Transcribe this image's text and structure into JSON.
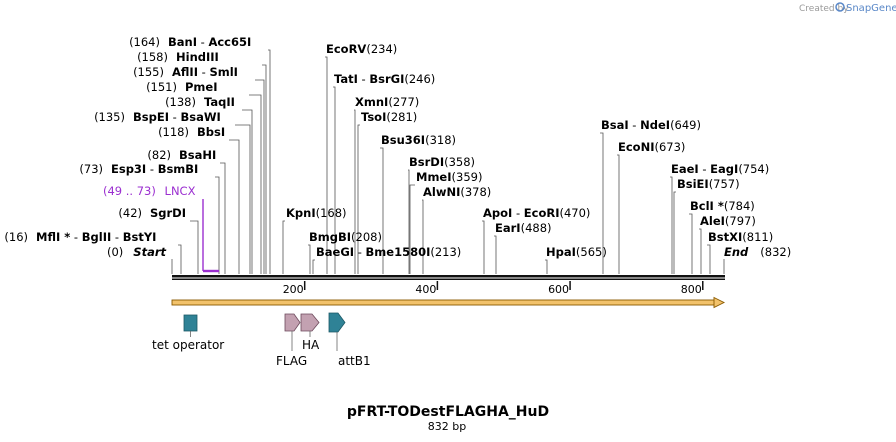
{
  "map": {
    "name": "pFRT-TODestFLAGHA_HuD",
    "length_label": "832 bp",
    "length": 832,
    "credit_prefix": "Created by",
    "credit_brand": "SnapGene"
  },
  "axis_ticks": [
    {
      "value": 200,
      "label": "200"
    },
    {
      "value": 400,
      "label": "400"
    },
    {
      "value": 600,
      "label": "600"
    },
    {
      "value": 800,
      "label": "800"
    }
  ],
  "sites": [
    {
      "id": "s164",
      "names": [
        "BanI",
        "Acc65I"
      ],
      "pos_label": "(164)",
      "pos_side": "left",
      "star": false,
      "line_x": 270
    },
    {
      "id": "s158",
      "names": [
        "HindIII"
      ],
      "pos_label": "(158)",
      "pos_side": "left",
      "star": false,
      "line_x": 266
    },
    {
      "id": "s155",
      "names": [
        "AflII",
        "SmlI"
      ],
      "pos_label": "(155)",
      "pos_side": "left",
      "star": false,
      "line_x": 264
    },
    {
      "id": "s151",
      "names": [
        "PmeI"
      ],
      "pos_label": "(151)",
      "pos_side": "left",
      "star": false,
      "line_x": 261
    },
    {
      "id": "s138",
      "names": [
        "TaqII"
      ],
      "pos_label": "(138)",
      "pos_side": "left",
      "star": false,
      "line_x": 252
    },
    {
      "id": "s135",
      "names": [
        "BspEI",
        "BsaWI"
      ],
      "pos_label": "(135)",
      "pos_side": "left",
      "star": false,
      "line_x": 250
    },
    {
      "id": "s118",
      "names": [
        "BbsI"
      ],
      "pos_label": "(118)",
      "pos_side": "left",
      "star": false,
      "line_x": 239
    },
    {
      "id": "s82",
      "names": [
        "BsaHI"
      ],
      "pos_label": "(82)",
      "pos_side": "left",
      "star": false,
      "line_x": 225
    },
    {
      "id": "s73",
      "names": [
        "Esp3I",
        "BsmBI"
      ],
      "pos_label": "(73)",
      "pos_side": "left",
      "star": false,
      "line_x": 219
    },
    {
      "id": "s42",
      "names": [
        "SgrDI"
      ],
      "pos_label": "(42)",
      "pos_side": "left",
      "star": false,
      "line_x": 198
    },
    {
      "id": "s16",
      "names": [
        "MflI",
        "BglII",
        "BstYI"
      ],
      "pos_label": "(16)",
      "pos_side": "left",
      "star": true,
      "line_x": 181
    },
    {
      "id": "s168",
      "names": [
        "KpnI"
      ],
      "pos_label": "(168)",
      "pos_side": "right",
      "star": false,
      "line_x": 283
    },
    {
      "id": "s208",
      "names": [
        "BmgBI"
      ],
      "pos_label": "(208)",
      "pos_side": "right",
      "star": false,
      "line_x": 310
    },
    {
      "id": "s213",
      "names": [
        "BaeGI",
        "Bme1580I"
      ],
      "pos_label": "(213)",
      "pos_side": "right",
      "star": false,
      "line_x": 313
    },
    {
      "id": "s234",
      "names": [
        "EcoRV"
      ],
      "pos_label": "(234)",
      "pos_side": "right",
      "star": false,
      "line_x": 327
    },
    {
      "id": "s246",
      "names": [
        "TatI",
        "BsrGI"
      ],
      "pos_label": "(246)",
      "pos_side": "right",
      "star": false,
      "line_x": 335
    },
    {
      "id": "s277",
      "names": [
        "XmnI"
      ],
      "pos_label": "(277)",
      "pos_side": "right",
      "star": false,
      "line_x": 355
    },
    {
      "id": "s281",
      "names": [
        "TsoI"
      ],
      "pos_label": "(281)",
      "pos_side": "right",
      "star": false,
      "line_x": 358
    },
    {
      "id": "s318",
      "names": [
        "Bsu36I"
      ],
      "pos_label": "(318)",
      "pos_side": "right",
      "star": false,
      "line_x": 383
    },
    {
      "id": "s358",
      "names": [
        "BsrDI"
      ],
      "pos_label": "(358)",
      "pos_side": "right",
      "star": false,
      "line_x": 409
    },
    {
      "id": "s359",
      "names": [
        "MmeI"
      ],
      "pos_label": "(359)",
      "pos_side": "right",
      "star": false,
      "line_x": 410
    },
    {
      "id": "s378",
      "names": [
        "AlwNI"
      ],
      "pos_label": "(378)",
      "pos_side": "right",
      "star": false,
      "line_x": 423
    },
    {
      "id": "s470",
      "names": [
        "ApoI",
        "EcoRI"
      ],
      "pos_label": "(470)",
      "pos_side": "right",
      "star": false,
      "line_x": 484
    },
    {
      "id": "s488",
      "names": [
        "EarI"
      ],
      "pos_label": "(488)",
      "pos_side": "right",
      "star": false,
      "line_x": 496
    },
    {
      "id": "s565",
      "names": [
        "HpaI"
      ],
      "pos_label": "(565)",
      "pos_side": "right",
      "star": false,
      "line_x": 547
    },
    {
      "id": "s649",
      "names": [
        "BsaI",
        "NdeI"
      ],
      "pos_label": "(649)",
      "pos_side": "right",
      "star": false,
      "line_x": 603
    },
    {
      "id": "s673",
      "names": [
        "EcoNI"
      ],
      "pos_label": "(673)",
      "pos_side": "right",
      "star": false,
      "line_x": 619
    },
    {
      "id": "s754",
      "names": [
        "EaeI",
        "EagI"
      ],
      "pos_label": "(754)",
      "pos_side": "right",
      "star": false,
      "line_x": 672
    },
    {
      "id": "s757",
      "names": [
        "BsiEI"
      ],
      "pos_label": "(757)",
      "pos_side": "right",
      "star": false,
      "line_x": 674
    },
    {
      "id": "s784",
      "names": [
        "BclI"
      ],
      "pos_label": "(784)",
      "pos_side": "right",
      "star": true,
      "line_x": 692
    },
    {
      "id": "s797",
      "names": [
        "AleI"
      ],
      "pos_label": "(797)",
      "pos_side": "right",
      "star": false,
      "line_x": 701
    },
    {
      "id": "s811",
      "names": [
        "BstXI"
      ],
      "pos_label": "(811)",
      "pos_side": "right",
      "star": false,
      "line_x": 710
    }
  ],
  "ends": [
    {
      "id": "start",
      "name": "Start",
      "pos_label": "(0)",
      "pos_side": "left"
    },
    {
      "id": "end",
      "name": "End",
      "pos_label": "(832)",
      "pos_side": "right"
    }
  ],
  "primer": {
    "name": "LNCX",
    "range_label": "(49 .. 73)",
    "color": "#9b2fd0"
  },
  "features": [
    {
      "id": "tet",
      "name": "tet operator",
      "shape": "box",
      "color": "#2f8296"
    },
    {
      "id": "flag",
      "name": "FLAG",
      "shape": "arrow",
      "color": "#c3a1b1"
    },
    {
      "id": "ha",
      "name": "HA",
      "shape": "arrow",
      "color": "#c3a1b1"
    },
    {
      "id": "attb1",
      "name": "attB1",
      "shape": "arrow",
      "color": "#2f8296"
    }
  ],
  "colors": {
    "backbone": "#111111",
    "orf_fill": "#f2c26b",
    "orf_edge": "#8a5a00",
    "primer": "#9b2fd0"
  }
}
